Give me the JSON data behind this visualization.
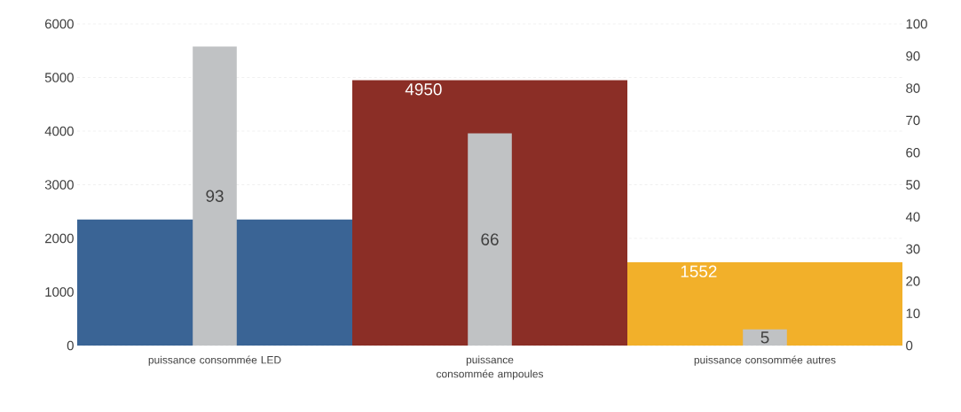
{
  "chart_data": {
    "type": "bar",
    "categories": [
      "puissance consommée LED",
      "puissance consommée ampoules",
      "puissance consommée autres"
    ],
    "series": [
      {
        "colors": [
          "#3a6495",
          "#8b2e26",
          "#f2b02a"
        ],
        "values": [
          2350,
          4950,
          1552
        ],
        "value_labels": [
          null,
          "4950",
          "1552"
        ]
      },
      {
        "color": "#c0c2c4",
        "axis": "y2",
        "values": [
          93,
          66,
          5
        ],
        "value_labels": [
          "93",
          "66",
          "5"
        ]
      }
    ],
    "ylim": [
      0,
      6000
    ],
    "yticks": [
      0,
      1000,
      2000,
      3000,
      4000,
      5000,
      6000
    ],
    "y2lim": [
      0,
      100
    ],
    "y2ticks": [
      0,
      10,
      20,
      30,
      40,
      50,
      60,
      70,
      80,
      90,
      100
    ],
    "grid": "y"
  }
}
